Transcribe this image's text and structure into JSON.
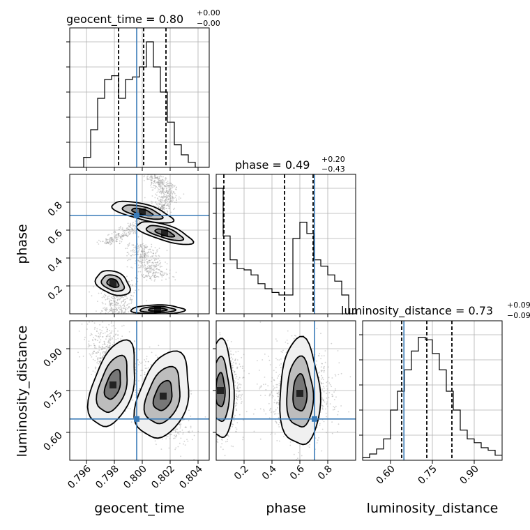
{
  "chart_data": {
    "type": "corner",
    "parameters": [
      "geocent_time",
      "phase",
      "luminosity_distance"
    ],
    "titles": [
      {
        "base": "geocent_time = 0.80",
        "plus": "+0.00",
        "minus": "−0.00"
      },
      {
        "base": "phase = 0.49",
        "plus": "+0.20",
        "minus": "−0.43"
      },
      {
        "base": "luminosity_distance = 0.73",
        "plus": "+0.09",
        "minus": "−0.09"
      }
    ],
    "ranges": {
      "geocent_time": [
        0.7948,
        0.8048
      ],
      "phase": [
        0.0,
        1.0
      ],
      "luminosity_distance": [
        0.5,
        1.0
      ]
    },
    "ticks": {
      "geocent_time": [
        "0.796",
        "0.798",
        "0.800",
        "0.802",
        "0.804"
      ],
      "phase": [
        "0.2",
        "0.4",
        "0.6",
        "0.8"
      ],
      "luminosity_distance": [
        "0.60",
        "0.75",
        "0.90"
      ]
    },
    "truths": {
      "geocent_time": 0.7996,
      "phase": 0.705,
      "luminosity_distance": 0.648
    },
    "quantiles": {
      "geocent_time": [
        0.7983,
        0.8001,
        0.8017
      ],
      "phase": [
        0.055,
        0.49,
        0.695
      ],
      "luminosity_distance": [
        0.64,
        0.73,
        0.82
      ]
    },
    "histograms": {
      "geocent_time": {
        "edges_start": 0.7948,
        "bin_width": 0.0005,
        "counts": [
          0,
          0,
          0.08,
          0.3,
          0.55,
          0.7,
          0.73,
          0.55,
          0.7,
          0.72,
          0.8,
          1.0,
          0.8,
          0.6,
          0.36,
          0.18,
          0.1,
          0.04,
          0,
          0
        ]
      },
      "phase": {
        "edges_start": 0.0,
        "bin_width": 0.05,
        "counts": [
          1.0,
          0.62,
          0.43,
          0.36,
          0.35,
          0.31,
          0.24,
          0.2,
          0.17,
          0.15,
          0.15,
          0.6,
          0.73,
          0.64,
          0.43,
          0.38,
          0.31,
          0.26,
          0.15,
          0
        ]
      },
      "luminosity_distance": {
        "edges_start": 0.5,
        "bin_width": 0.025,
        "counts": [
          0.02,
          0.05,
          0.09,
          0.17,
          0.4,
          0.55,
          0.72,
          0.87,
          0.98,
          0.96,
          0.85,
          0.72,
          0.55,
          0.4,
          0.24,
          0.17,
          0.14,
          0.1,
          0.08,
          0.04
        ]
      }
    },
    "contour_levels": 3
  }
}
